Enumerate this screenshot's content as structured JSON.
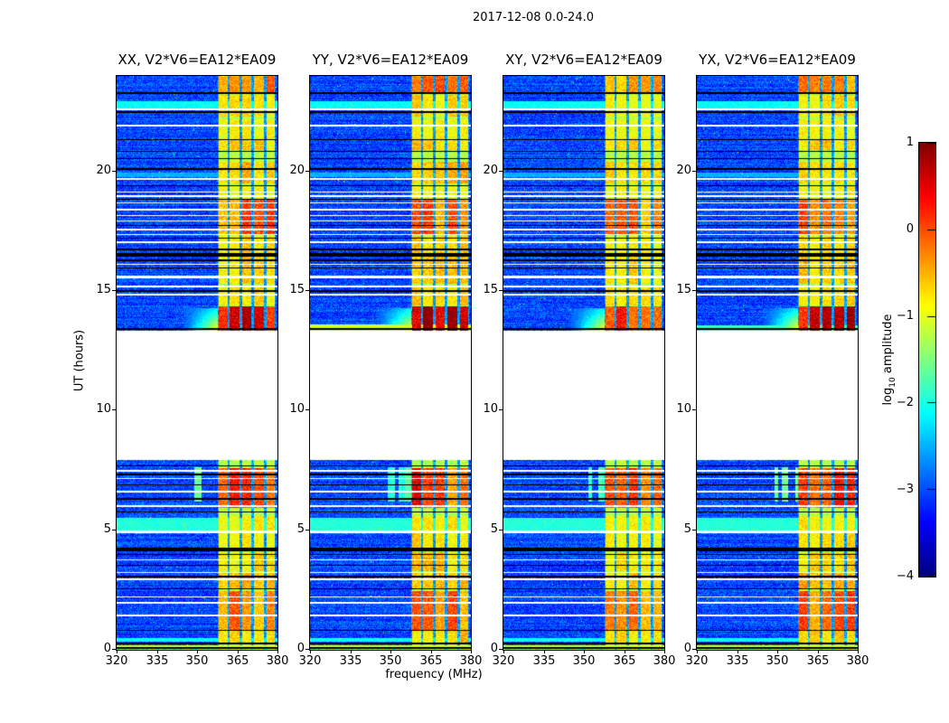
{
  "chart_data": {
    "type": "heatmap",
    "title": "2017-12-08 0.0-24.0",
    "xlabel": "frequency (MHz)",
    "ylabel": "UT (hours)",
    "x_range_mhz": [
      320,
      380
    ],
    "y_range_hours": [
      0,
      24
    ],
    "x_ticks": [
      "320",
      "335",
      "350",
      "365",
      "380"
    ],
    "x_tick_values": [
      320,
      335,
      350,
      365,
      380
    ],
    "y_ticks": [
      "0",
      "5",
      "10",
      "15",
      "20"
    ],
    "y_tick_values": [
      0,
      5,
      10,
      15,
      20
    ],
    "colormap": "jet",
    "colorbar": {
      "label_prefix": "log",
      "label_sub": "10",
      "label_suffix": " amplitude",
      "ticks": [
        "1",
        "0",
        "−1",
        "−2",
        "−3",
        "−4"
      ],
      "tick_values": [
        1,
        0,
        -1,
        -2,
        -3,
        -4
      ],
      "range": [
        -4,
        1
      ]
    },
    "panels": [
      {
        "title": "XX, V2*V6=EA12*EA09",
        "seed": 101,
        "amp_multiplier": 1.0,
        "full_stripe": null
      },
      {
        "title": "YY, V2*V6=EA12*EA09",
        "seed": 202,
        "amp_multiplier": 1.12,
        "full_stripe": {
          "t": [
            13.36,
            13.62
          ],
          "val": -1.1
        }
      },
      {
        "title": "XY, V2*V6=EA12*EA09",
        "seed": 303,
        "amp_multiplier": 0.88,
        "full_stripe": null
      },
      {
        "title": "YX, V2*V6=EA12*EA09",
        "seed": 404,
        "amp_multiplier": 1.08,
        "full_stripe": {
          "t": [
            13.36,
            13.58
          ],
          "val": -1.85
        }
      }
    ],
    "features": {
      "gap_hours": [
        7.93,
        13.35
      ],
      "band_mhz": [
        357.7,
        379.3
      ],
      "band_grid_mhz": [
        361.8,
        366.2,
        370.8,
        375.6
      ],
      "background_value_range": [
        -3.55,
        -2.8
      ],
      "white_lines": [
        [
          22.62,
          2
        ],
        [
          21.93,
          2
        ],
        [
          19.7,
          2
        ],
        [
          19.15,
          1
        ],
        [
          18.98,
          2
        ],
        [
          18.7,
          1
        ],
        [
          18.4,
          2
        ],
        [
          18.15,
          1
        ],
        [
          17.92,
          1
        ],
        [
          17.58,
          2
        ],
        [
          17.35,
          1
        ],
        [
          17.05,
          2
        ],
        [
          16.12,
          1
        ],
        [
          15.6,
          3
        ],
        [
          15.2,
          2
        ],
        [
          14.85,
          2
        ],
        [
          7.5,
          2
        ],
        [
          7.15,
          1
        ],
        [
          6.6,
          2
        ],
        [
          6.0,
          2
        ],
        [
          4.92,
          3
        ],
        [
          3.75,
          1
        ],
        [
          3.25,
          1
        ],
        [
          2.95,
          2
        ],
        [
          2.2,
          1
        ],
        [
          1.95,
          2
        ],
        [
          1.45,
          2
        ]
      ],
      "black_lines": [
        [
          23.27,
          2
        ],
        [
          22.48,
          2
        ],
        [
          21.32,
          1
        ],
        [
          20.85,
          1
        ],
        [
          20.55,
          1
        ],
        [
          20.1,
          2
        ],
        [
          19.42,
          1
        ],
        [
          18.85,
          1
        ],
        [
          17.75,
          1
        ],
        [
          17.2,
          1
        ],
        [
          16.75,
          2
        ],
        [
          16.52,
          4
        ],
        [
          16.3,
          2
        ],
        [
          15.95,
          1
        ],
        [
          15.02,
          2
        ],
        [
          13.42,
          2
        ],
        [
          7.7,
          1
        ],
        [
          7.32,
          2
        ],
        [
          6.88,
          1
        ],
        [
          6.3,
          2
        ],
        [
          5.75,
          1
        ],
        [
          4.18,
          4
        ],
        [
          4.0,
          1
        ],
        [
          3.55,
          1
        ],
        [
          3.08,
          2
        ],
        [
          2.55,
          1
        ],
        [
          0.8,
          1
        ],
        [
          0.28,
          2
        ],
        [
          0.08,
          2
        ]
      ],
      "cyan_stripes": [
        {
          "t": [
            22.65,
            22.95
          ],
          "val": -2.1
        },
        {
          "t": [
            19.75,
            19.95
          ],
          "val": -2.5
        },
        {
          "t": [
            5.0,
            5.5
          ],
          "val": -1.95
        },
        {
          "t": [
            0.33,
            0.5
          ],
          "val": -2.1
        }
      ],
      "yellow_stripe": {
        "t": [
          0.12,
          0.2
        ],
        "val": -1.15
      },
      "hot_patches": [
        [
          23.25,
          24.0,
          0.9
        ],
        [
          22.3,
          23.2,
          0.45
        ],
        [
          21.4,
          22.2,
          0.35
        ],
        [
          20.9,
          21.35,
          0.55
        ],
        [
          19.5,
          20.4,
          0.6
        ],
        [
          18.9,
          19.4,
          0.35
        ],
        [
          17.35,
          18.85,
          1.05
        ],
        [
          16.6,
          17.3,
          0.5
        ],
        [
          15.3,
          16.45,
          0.55
        ],
        [
          14.4,
          15.15,
          0.5
        ],
        [
          13.35,
          14.35,
          1.7
        ],
        [
          5.95,
          7.6,
          1.2
        ],
        [
          5.0,
          5.6,
          0.4
        ],
        [
          4.25,
          4.95,
          0.45
        ],
        [
          3.3,
          4.1,
          0.5
        ],
        [
          2.55,
          3.2,
          0.6
        ],
        [
          0.85,
          2.45,
          1.0
        ],
        [
          0.25,
          0.8,
          0.55
        ]
      ],
      "wedge_taper": {
        "t": [
          13.35,
          14.3
        ],
        "f": [
          345.0,
          357.7
        ]
      },
      "streak_taper": {
        "t": [
          6.2,
          7.65
        ],
        "f": [
          349.0,
          357.7
        ]
      }
    }
  }
}
